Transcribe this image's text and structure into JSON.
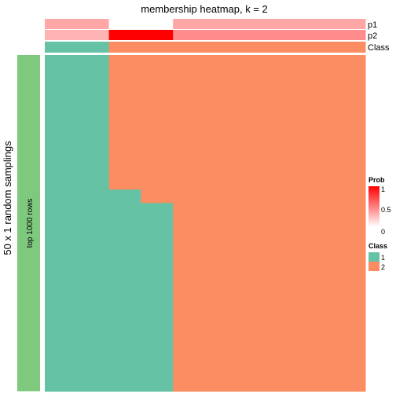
{
  "chart_data": {
    "type": "heatmap",
    "title": "membership heatmap, k = 2",
    "row_title": "50 x 1 random samplings",
    "row_block_label": "top 1000 rows",
    "n_columns": 10,
    "annotations": [
      {
        "name": "p1",
        "values": [
          0.35,
          0.35,
          0.0,
          0.0,
          0.35,
          0.35,
          0.35,
          0.35,
          0.35,
          0.35
        ]
      },
      {
        "name": "p2",
        "values": [
          0.3,
          0.3,
          1.0,
          1.0,
          0.45,
          0.45,
          0.45,
          0.45,
          0.45,
          0.45
        ]
      },
      {
        "name": "Class",
        "values": [
          1,
          1,
          2,
          2,
          2,
          2,
          2,
          2,
          2,
          2
        ]
      }
    ],
    "membership_matrix": {
      "note_class_values": "rows = samplings (top to bottom), columns = samples",
      "segments": [
        {
          "rows": 20,
          "classes": [
            1,
            1,
            2,
            2,
            2,
            2,
            2,
            2,
            2,
            2
          ]
        },
        {
          "rows": 2,
          "classes": [
            1,
            1,
            1,
            2,
            2,
            2,
            2,
            2,
            2,
            2
          ]
        },
        {
          "rows": 28,
          "classes": [
            1,
            1,
            1,
            1,
            2,
            2,
            2,
            2,
            2,
            2
          ]
        }
      ]
    },
    "legend": {
      "prob": {
        "title": "Prob",
        "ticks": [
          "1",
          "0.5",
          "0"
        ],
        "colors": [
          "#ff0000",
          "#ffffff"
        ]
      },
      "class": {
        "title": "Class",
        "items": [
          {
            "label": "1",
            "color": "#66c2a5"
          },
          {
            "label": "2",
            "color": "#fc8d62"
          }
        ]
      }
    },
    "row_block_color": "#7fc97f"
  }
}
